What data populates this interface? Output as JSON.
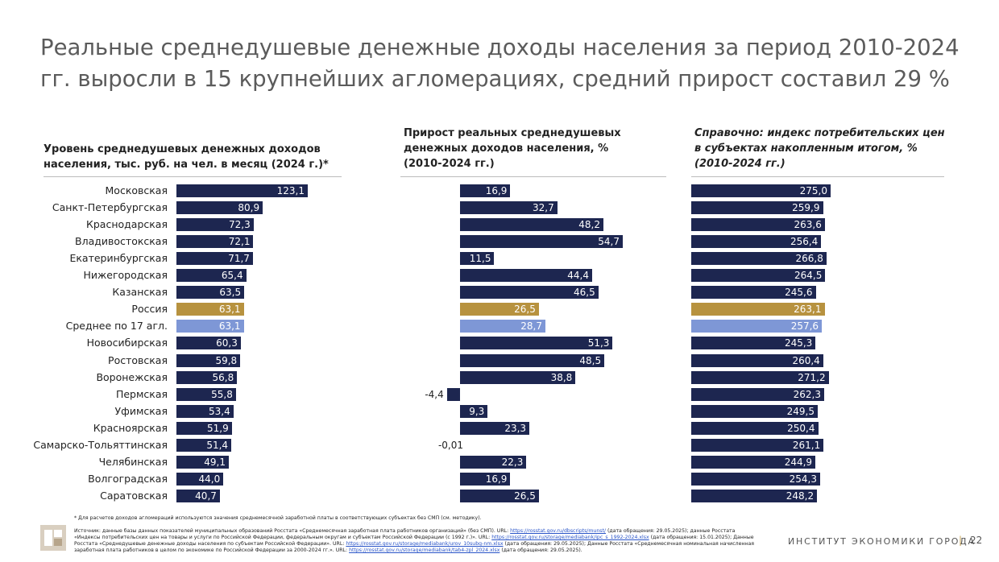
{
  "title": "Реальные среднедушевые денежные доходы населения за период 2010-2024 гг. выросли в 15 крупнейших агломерациях, средний прирост составил 29 %",
  "colors": {
    "navy": "#1d2650",
    "russia": "#b7923f",
    "average": "#7e97d6"
  },
  "chart_data": [
    {
      "type": "bar",
      "orientation": "horizontal",
      "title": "Уровень среднедушевых денежных доходов населения, тыс. руб. на чел. в месяц (2024 г.)*",
      "categories": [
        "Московская",
        "Санкт-Петербургская",
        "Краснодарская",
        "Владивостокская",
        "Екатеринбургская",
        "Нижегородская",
        "Казанская",
        "Россия",
        "Среднее по 17 агл.",
        "Новосибирская",
        "Ростовская",
        "Воронежская",
        "Пермская",
        "Уфимская",
        "Красноярская",
        "Самарско-Тольяттинская",
        "Челябинская",
        "Волгоградская",
        "Саратовская"
      ],
      "values": [
        123.1,
        80.9,
        72.3,
        72.1,
        71.7,
        65.4,
        63.5,
        63.1,
        63.1,
        60.3,
        59.8,
        56.8,
        55.8,
        53.4,
        51.9,
        51.4,
        49.1,
        44.0,
        40.7
      ],
      "labels": [
        "123,1",
        "80,9",
        "72,3",
        "72,1",
        "71,7",
        "65,4",
        "63,5",
        "63,1",
        "63,1",
        "60,3",
        "59,8",
        "56,8",
        "55,8",
        "53,4",
        "51,9",
        "51,4",
        "49,1",
        "44,0",
        "40,7"
      ],
      "xlim": [
        0,
        123.1
      ]
    },
    {
      "type": "bar",
      "orientation": "horizontal",
      "title": "Прирост реальных среднедушевых денежных доходов населения, % (2010-2024 гг.)",
      "values": [
        16.9,
        32.7,
        48.2,
        54.7,
        11.5,
        44.4,
        46.5,
        26.5,
        28.7,
        51.3,
        48.5,
        38.8,
        -4.4,
        9.3,
        23.3,
        -0.01,
        22.3,
        16.9,
        26.5
      ],
      "labels": [
        "16,9",
        "32,7",
        "48,2",
        "54,7",
        "11,5",
        "44,4",
        "46,5",
        "26,5",
        "28,7",
        "51,3",
        "48,5",
        "38,8",
        "-4,4",
        "9,3",
        "23,3",
        "-0,01",
        "22,3",
        "16,9",
        "26,5"
      ],
      "xlim": [
        -4.4,
        54.7
      ]
    },
    {
      "type": "bar",
      "orientation": "horizontal",
      "title": "Справочно: индекс потребительских цен в субъектах накопленным итогом, % (2010-2024 гг.)",
      "values": [
        275.0,
        259.9,
        263.6,
        256.4,
        266.8,
        264.5,
        245.6,
        263.1,
        257.6,
        245.3,
        260.4,
        271.2,
        262.3,
        249.5,
        250.4,
        261.1,
        244.9,
        254.3,
        248.2
      ],
      "labels": [
        "275,0",
        "259,9",
        "263,6",
        "256,4",
        "266,8",
        "264,5",
        "245,6",
        "263,1",
        "257,6",
        "245,3",
        "260,4",
        "271,2",
        "262,3",
        "249,5",
        "250,4",
        "261,1",
        "244,9",
        "254,3",
        "248,2"
      ],
      "xlim": [
        0,
        275.0
      ]
    }
  ],
  "notes": {
    "footnote": "* Для расчетов доходов агломераций используются значения среднемесячной заработной платы в соответствующих субъектах без СМП (см. методику).",
    "src1": "Источник: данные базы данных показателей муниципальных образований Росстата «Среднемесячная заработная плата работников организаций» (без СМП). URL:",
    "link1": "https://rosstat.gov.ru/dbscripts/munst/",
    "src1b": "(дата обращения: 29.05.2025); данные Росстата",
    "src2": "«Индексы потребительских цен на товары и услуги по Российской Федерации, федеральным округам и субъектам Российской Федерации (с 1992 г.)». URL:",
    "link2": "https://rosstat.gov.ru/storage/mediabank/ipc_s_1992-2024.xlsx",
    "src2b": "(дата обращения: 15.01.2025); Данные",
    "src3": "Росстата «Среднедушевые денежные доходы населения по субъектам Российской Федерации». URL:",
    "link3": "https://rosstat.gov.ru/storage/mediabank/urov_10subg-nm.xlsx",
    "src3b": "(дата обращения: 29.05.2025); Данные Росстата «Среднемесячная номинальная начисленная",
    "src4": "заработная плата работников в целом по экономике по Российской Федерации за 2000-2024 гг.». URL:",
    "link4": "https://rosstat.gov.ru/storage/mediabank/tab4-zpl_2024.xlsx",
    "src4b": "(дата обращения: 29.05.2025)."
  },
  "footer": {
    "institute": "ИНСТИТУТ ЭКОНОМИКИ ГОРОДА",
    "separator": "|",
    "page": "22"
  }
}
